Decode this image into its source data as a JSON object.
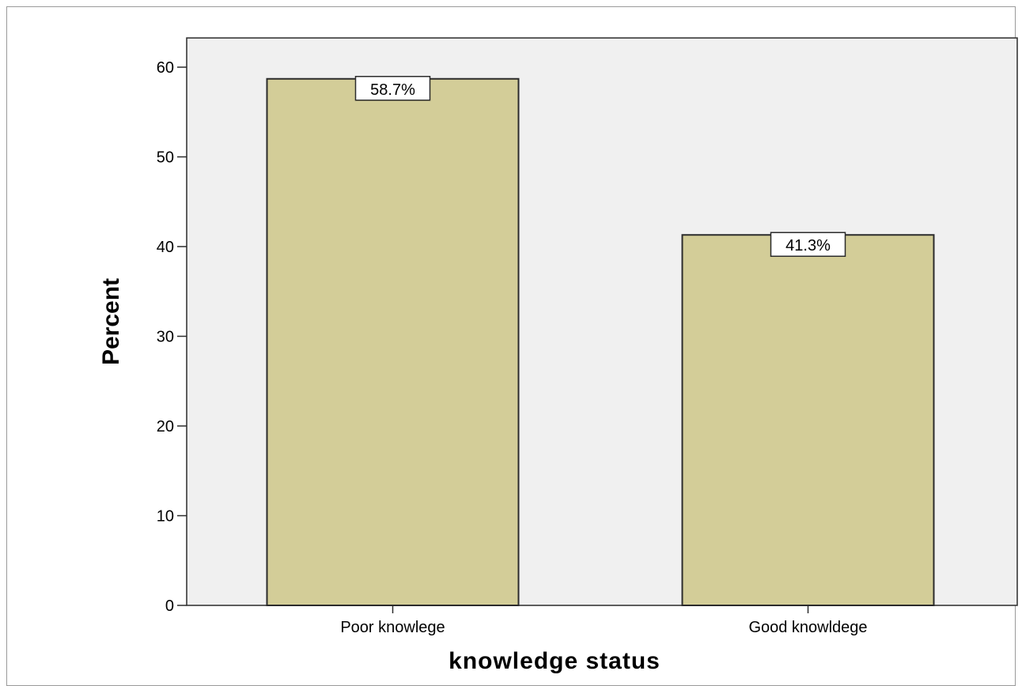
{
  "chart_data": {
    "type": "bar",
    "categories": [
      "Poor knowlege",
      "Good knowldege"
    ],
    "values": [
      58.7,
      41.3
    ],
    "data_labels": [
      "58.7%",
      "41.3%"
    ],
    "xlabel": "knowledge status",
    "ylabel": "Percent",
    "ylim": [
      0,
      60
    ],
    "yticks": [
      "0",
      "10",
      "20",
      "30",
      "40",
      "50",
      "60"
    ],
    "grid": false,
    "legend": "none",
    "colors": {
      "plot_background": "#f0f0f0",
      "bar_fill": "#d3cd98",
      "bar_stroke": "#2b2b2b",
      "label_box": "#ffffff"
    }
  }
}
